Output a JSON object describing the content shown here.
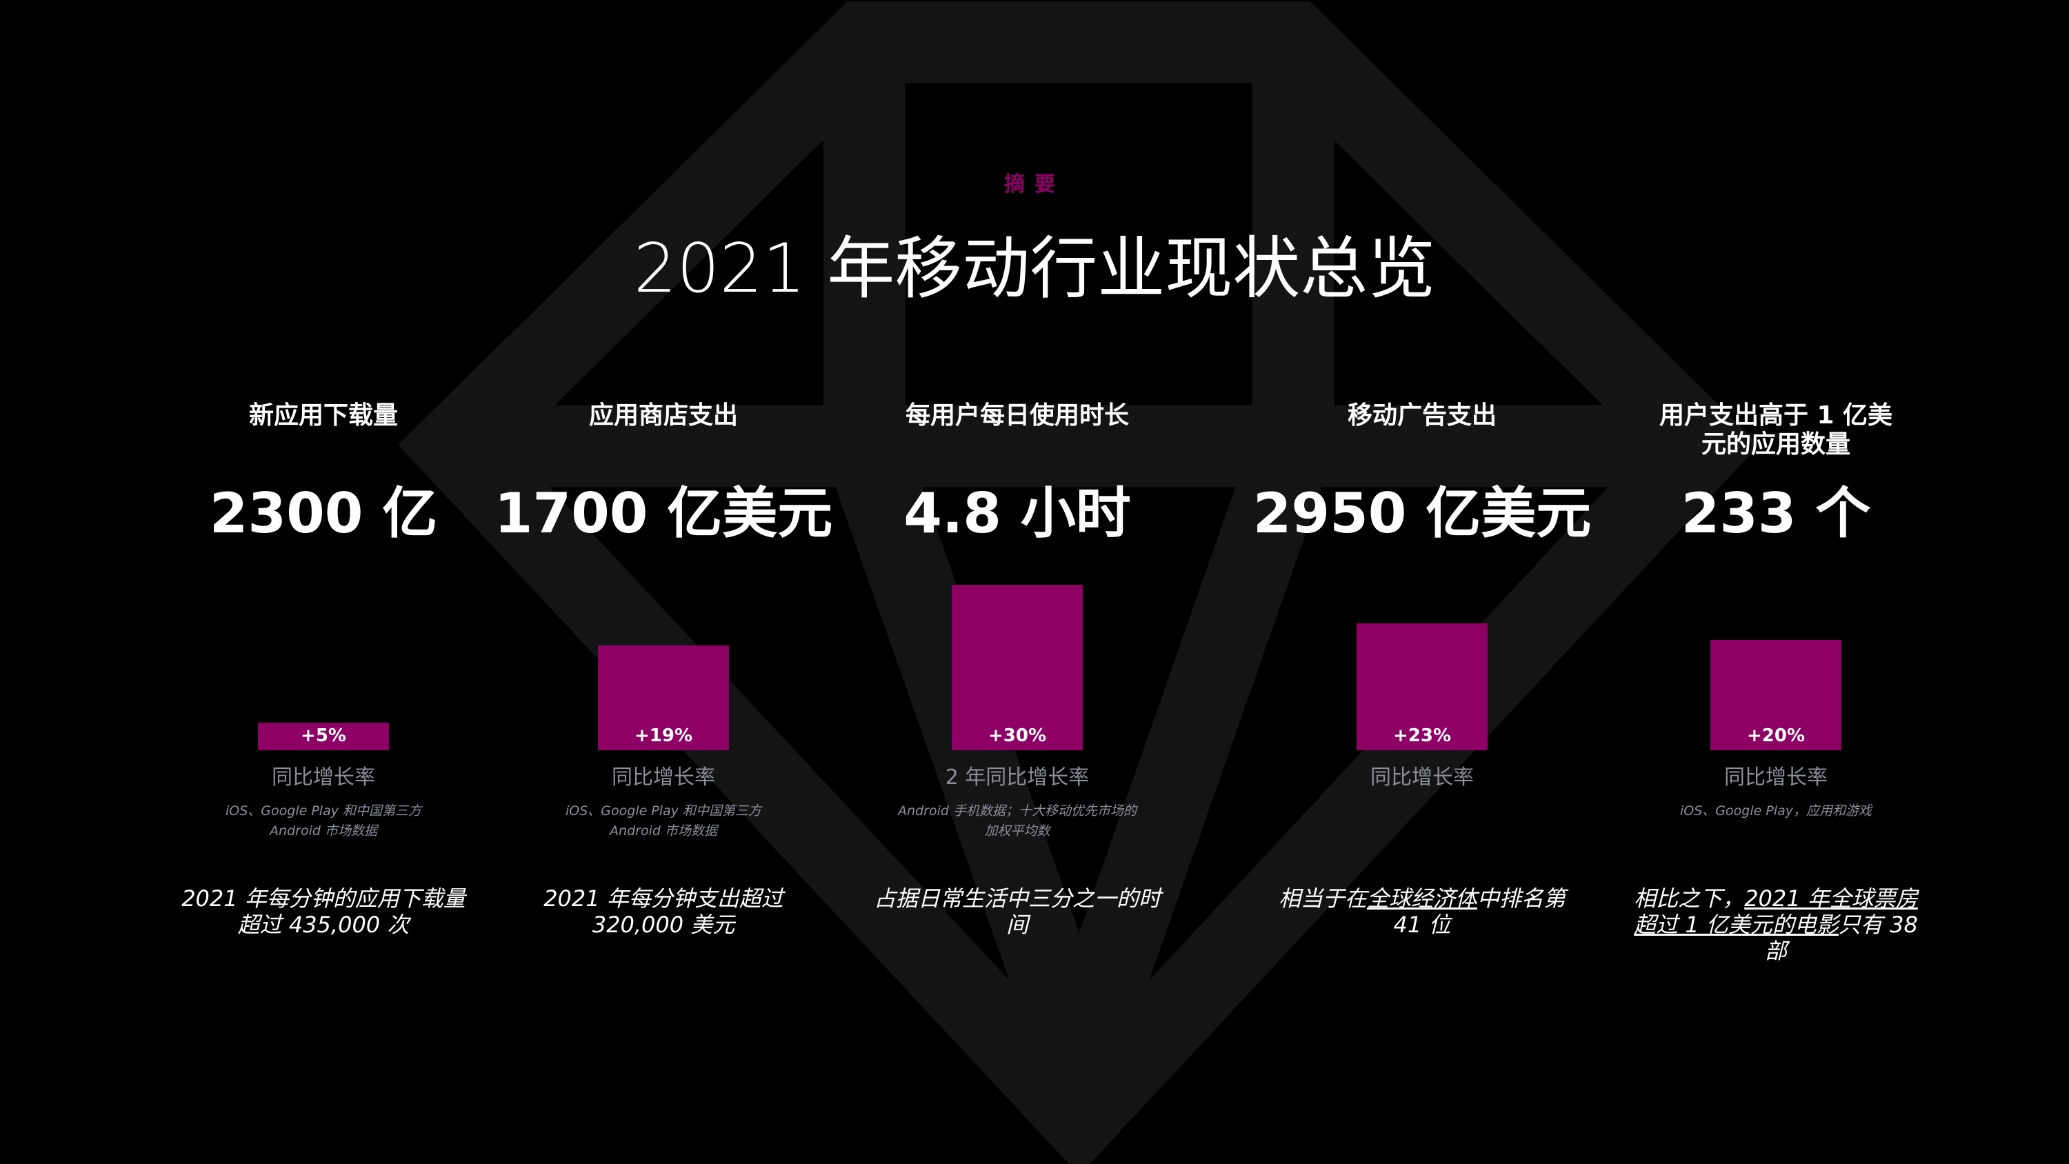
{
  "header": {
    "eyebrow": "摘要",
    "title": "2021 年移动行业现状总览"
  },
  "colors": {
    "accent": "#8e0066",
    "background": "#000000",
    "diamond": "#141414",
    "muted": "#8a8f9a"
  },
  "metrics": [
    {
      "heading": "新应用下载量",
      "value": "2300 亿",
      "growth": 5,
      "growth_label": "+5%",
      "sub": "同比增长率",
      "source": "iOS、Google Play 和中国第三方 Android 市场数据",
      "desc": "2021 年每分钟的应用下载量超过 435,000 次"
    },
    {
      "heading": "应用商店支出",
      "value": "1700 亿美元",
      "growth": 19,
      "growth_label": "+19%",
      "sub": "同比增长率",
      "source": "iOS、Google Play 和中国第三方 Android 市场数据",
      "desc": "2021 年每分钟支出超过 320,000 美元"
    },
    {
      "heading": "每用户每日使用时长",
      "value": "4.8 小时",
      "growth": 30,
      "growth_label": "+30%",
      "sub": "2 年同比增长率",
      "source": "Android 手机数据；十大移动优先市场的加权平均数",
      "desc": "占据日常生活中三分之一的时间"
    },
    {
      "heading": "移动广告支出",
      "value": "2950 亿美元",
      "growth": 23,
      "growth_label": "+23%",
      "sub": "同比增长率",
      "source": "",
      "desc_pre": "相当于在",
      "desc_link": "全球经济体",
      "desc_post": "中排名第 41 位"
    },
    {
      "heading": "用户支出高于 1 亿美元的应用数量",
      "value": "233 个",
      "growth": 20,
      "growth_label": "+20%",
      "sub": "同比增长率",
      "source": "iOS、Google Play，应用和游戏",
      "desc_pre": "相比之下，",
      "desc_link": "2021 年全球票房超过 1 亿美元的电影",
      "desc_post": "只有 38 部"
    }
  ]
}
